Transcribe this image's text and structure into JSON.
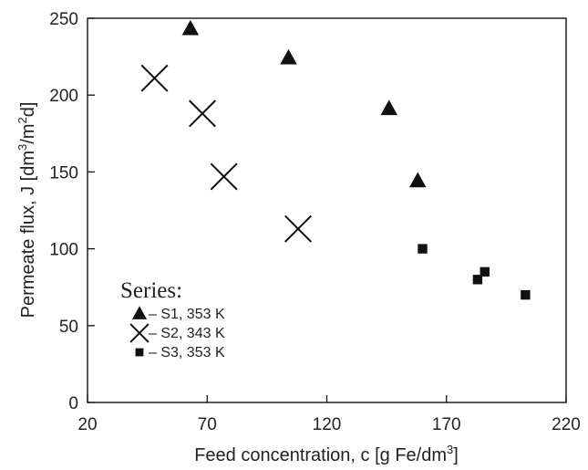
{
  "chart_data": {
    "type": "scatter",
    "xlabel": "Feed concentration, c [g Fe/dm³]",
    "ylabel": "Permeate flux, J [dm³/m²d]",
    "xlim": [
      20,
      220
    ],
    "ylim": [
      0,
      250
    ],
    "xticks": [
      "20",
      "70",
      "120",
      "170",
      "220"
    ],
    "yticks": [
      "0",
      "50",
      "100",
      "150",
      "200",
      "250"
    ],
    "grid": false,
    "legend_title": "Series:",
    "legend_position": "bottom-left",
    "series": [
      {
        "name": "– S1, 353 K",
        "marker": "triangle",
        "color": "#111111",
        "points": [
          [
            63,
            243
          ],
          [
            104,
            224
          ],
          [
            146,
            191
          ],
          [
            158,
            144
          ]
        ]
      },
      {
        "name": "– S2, 343 K",
        "marker": "cross",
        "color": "#111111",
        "points": [
          [
            48,
            211
          ],
          [
            68,
            188
          ],
          [
            77,
            147
          ],
          [
            108,
            113
          ]
        ]
      },
      {
        "name": "– S3, 353 K",
        "marker": "square",
        "color": "#111111",
        "points": [
          [
            160,
            100
          ],
          [
            183,
            80
          ],
          [
            186,
            85
          ],
          [
            203,
            70
          ]
        ]
      }
    ]
  }
}
